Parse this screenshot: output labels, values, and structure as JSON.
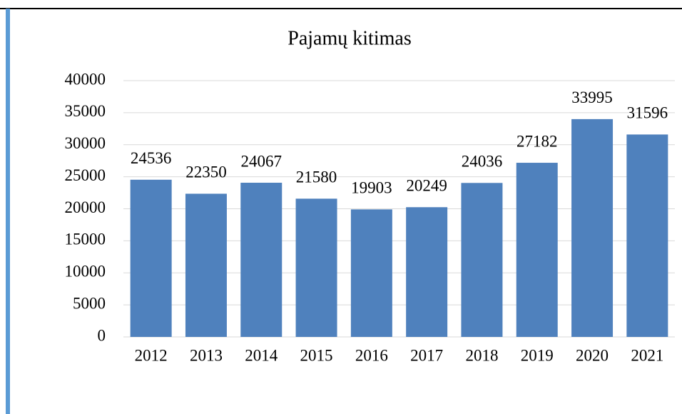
{
  "chart_data": {
    "type": "bar",
    "title": "Pajamų kitimas",
    "categories": [
      "2012",
      "2013",
      "2014",
      "2015",
      "2016",
      "2017",
      "2018",
      "2019",
      "2020",
      "2021"
    ],
    "values": [
      24536,
      22350,
      24067,
      21580,
      19903,
      20249,
      24036,
      27182,
      33995,
      31596
    ],
    "color": "#4f81bd",
    "ylim": [
      0,
      40000
    ],
    "yticks": [
      0,
      5000,
      10000,
      15000,
      20000,
      25000,
      30000,
      35000,
      40000
    ],
    "grid": true
  }
}
